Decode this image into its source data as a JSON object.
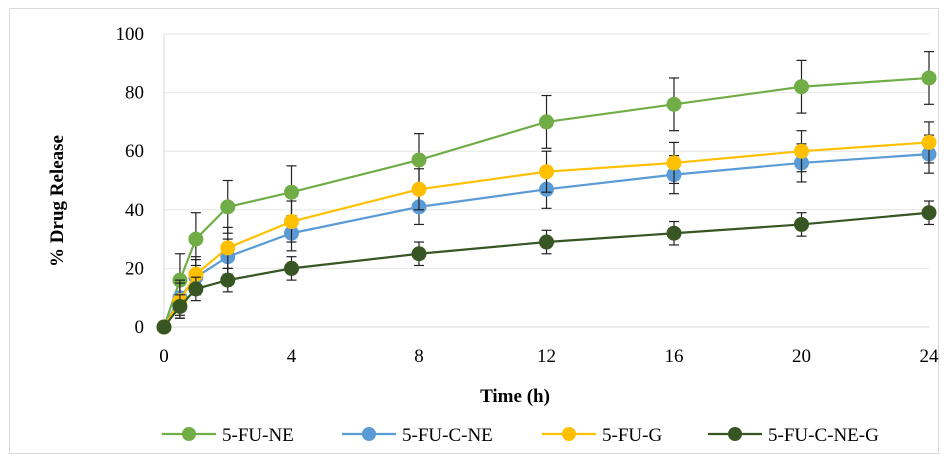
{
  "chart_data": {
    "type": "line",
    "title": "",
    "xlabel": "Time (h)",
    "ylabel": "% Drug Release",
    "x": [
      0,
      0.5,
      1,
      2,
      4,
      8,
      12,
      16,
      20,
      24
    ],
    "x_ticks": [
      0,
      4,
      8,
      12,
      16,
      20,
      24
    ],
    "xlim": [
      0,
      24
    ],
    "ylim": [
      0,
      100
    ],
    "y_ticks": [
      0,
      20,
      40,
      60,
      80,
      100
    ],
    "grid": "horizontal",
    "legend_position": "bottom",
    "series": [
      {
        "name": "5-FU-NE",
        "color": "#70ad47",
        "values": [
          0,
          16,
          30,
          41,
          46,
          57,
          70,
          76,
          82,
          85
        ],
        "errors": [
          0,
          9,
          9,
          9,
          9,
          9,
          9,
          9,
          9,
          9
        ]
      },
      {
        "name": "5-FU-C-NE",
        "color": "#5b9bd5",
        "values": [
          0,
          10,
          17,
          24,
          32,
          41,
          47,
          52,
          56,
          59
        ],
        "errors": [
          0,
          6,
          6,
          6,
          6,
          6,
          6.5,
          6.5,
          6.5,
          6.5
        ]
      },
      {
        "name": "5-FU-G",
        "color": "#ffc000",
        "values": [
          0,
          9,
          18,
          27,
          36,
          47,
          53,
          56,
          60,
          63
        ],
        "errors": [
          0,
          6,
          6,
          7,
          7,
          7,
          7,
          7,
          7,
          7
        ]
      },
      {
        "name": "5-FU-C-NE-G",
        "color": "#375623",
        "values": [
          0,
          7,
          13,
          16,
          20,
          25,
          29,
          32,
          35,
          39
        ],
        "errors": [
          0,
          4,
          4,
          4,
          4,
          4,
          4,
          4,
          4,
          4
        ]
      }
    ]
  }
}
